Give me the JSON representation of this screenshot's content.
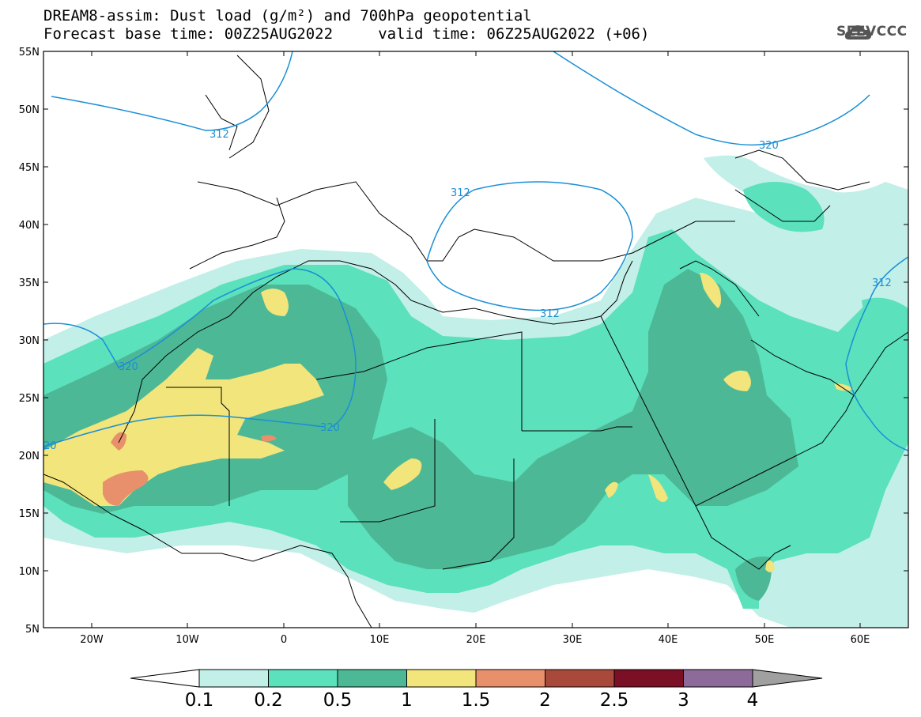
{
  "header": {
    "title_line1": "DREAM8-assim: Dust load (g/m²) and 700hPa geopotential",
    "title_line2": "Forecast base time: 00Z25AUG2022     valid time: 06Z25AUG2022 (+06)"
  },
  "logo": {
    "text": "SEEVCCC",
    "icon": "cloud-icon"
  },
  "map": {
    "lat_labels": [
      "55N",
      "50N",
      "45N",
      "40N",
      "35N",
      "30N",
      "25N",
      "20N",
      "15N",
      "10N",
      "5N"
    ],
    "lon_labels": [
      "20W",
      "10W",
      "0",
      "10E",
      "20E",
      "30E",
      "40E",
      "50E",
      "60E"
    ],
    "lat_range": [
      5,
      55
    ],
    "lon_range": [
      -25,
      65
    ],
    "contour_labels": [
      {
        "text": "312"
      },
      {
        "text": "320"
      },
      {
        "text": "312"
      },
      {
        "text": "312"
      },
      {
        "text": "320"
      },
      {
        "text": "320"
      },
      {
        "text": "20"
      },
      {
        "text": "312"
      }
    ],
    "colors": {
      "contour_line": "#1a8fd6",
      "level_0_1": "#c2efe8",
      "level_0_2": "#5be1bc",
      "level_0_5": "#4db896",
      "level_1": "#f1e57b",
      "level_1_5": "#e8906c",
      "level_2": "#a9493b",
      "level_2_5": "#7b0f26",
      "level_3": "#8c6b9b",
      "level_4": "#a0a0a0"
    }
  },
  "colorbar": {
    "labels": [
      "0.1",
      "0.2",
      "0.5",
      "1",
      "1.5",
      "2",
      "2.5",
      "3",
      "4"
    ],
    "colors": [
      "#c2efe8",
      "#5be1bc",
      "#4db896",
      "#f1e57b",
      "#e8906c",
      "#a9493b",
      "#7b0f26",
      "#8c6b9b"
    ],
    "low_end_color": "#ffffff",
    "high_end_color": "#a0a0a0"
  }
}
